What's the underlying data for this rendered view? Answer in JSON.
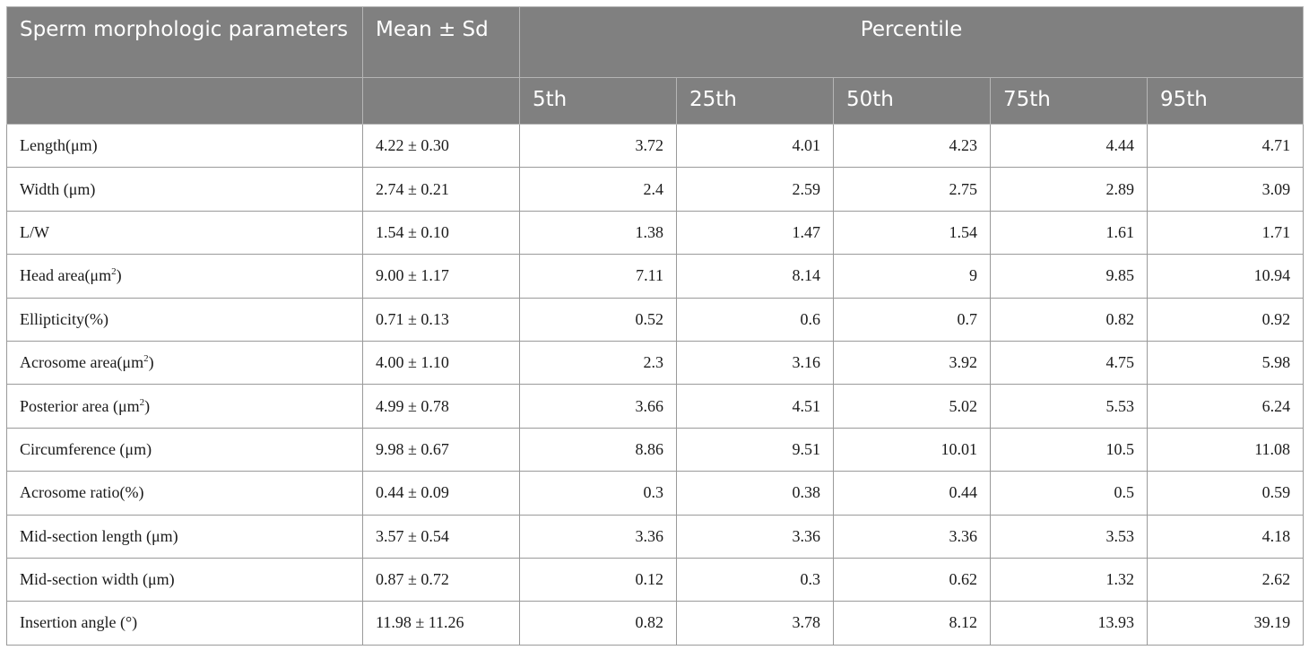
{
  "header": {
    "parameter_label": "Sperm morphologic parameters",
    "mean_label": "Mean ± Sd",
    "percentile_label": "Percentile",
    "percentiles": [
      "5th",
      "25th",
      "50th",
      "75th",
      "95th"
    ]
  },
  "rows": [
    {
      "param": "Length(μm)",
      "sup": "",
      "mean": "4.22 ± 0.30",
      "p": [
        "3.72",
        "4.01",
        "4.23",
        "4.44",
        "4.71"
      ]
    },
    {
      "param": "Width (μm)",
      "sup": "",
      "mean": "2.74 ± 0.21",
      "p": [
        "2.4",
        "2.59",
        "2.75",
        "2.89",
        "3.09"
      ]
    },
    {
      "param": "L/W",
      "sup": "",
      "mean": "1.54 ± 0.10",
      "p": [
        "1.38",
        "1.47",
        "1.54",
        "1.61",
        "1.71"
      ]
    },
    {
      "param": "Head area(μm",
      "sup": "2",
      "close": ")",
      "mean": "9.00 ± 1.17",
      "p": [
        "7.11",
        "8.14",
        "9",
        "9.85",
        "10.94"
      ]
    },
    {
      "param": "Ellipticity(%)",
      "sup": "",
      "mean": "0.71 ± 0.13",
      "p": [
        "0.52",
        "0.6",
        "0.7",
        "0.82",
        "0.92"
      ]
    },
    {
      "param": "Acrosome area(μm",
      "sup": "2",
      "close": ")",
      "mean": "4.00 ± 1.10",
      "p": [
        "2.3",
        "3.16",
        "3.92",
        "4.75",
        "5.98"
      ]
    },
    {
      "param": "Posterior area (μm",
      "sup": "2",
      "close": ")",
      "mean": "4.99 ± 0.78",
      "p": [
        "3.66",
        "4.51",
        "5.02",
        "5.53",
        "6.24"
      ]
    },
    {
      "param": "Circumference (μm)",
      "sup": "",
      "mean": "9.98 ± 0.67",
      "p": [
        "8.86",
        "9.51",
        "10.01",
        "10.5",
        "11.08"
      ]
    },
    {
      "param": "Acrosome ratio(%)",
      "sup": "",
      "mean": "0.44 ± 0.09",
      "p": [
        "0.3",
        "0.38",
        "0.44",
        "0.5",
        "0.59"
      ]
    },
    {
      "param": "Mid-section length (μm)",
      "sup": "",
      "mean": "3.57 ± 0.54",
      "p": [
        "3.36",
        "3.36",
        "3.36",
        "3.53",
        "4.18"
      ]
    },
    {
      "param": "Mid-section width (μm)",
      "sup": "",
      "mean": "0.87 ± 0.72",
      "p": [
        "0.12",
        "0.3",
        "0.62",
        "1.32",
        "2.62"
      ]
    },
    {
      "param": "Insertion angle (°)",
      "sup": "",
      "mean": "11.98 ± 11.26",
      "p": [
        "0.82",
        "3.78",
        "8.12",
        "13.93",
        "39.19"
      ]
    }
  ]
}
